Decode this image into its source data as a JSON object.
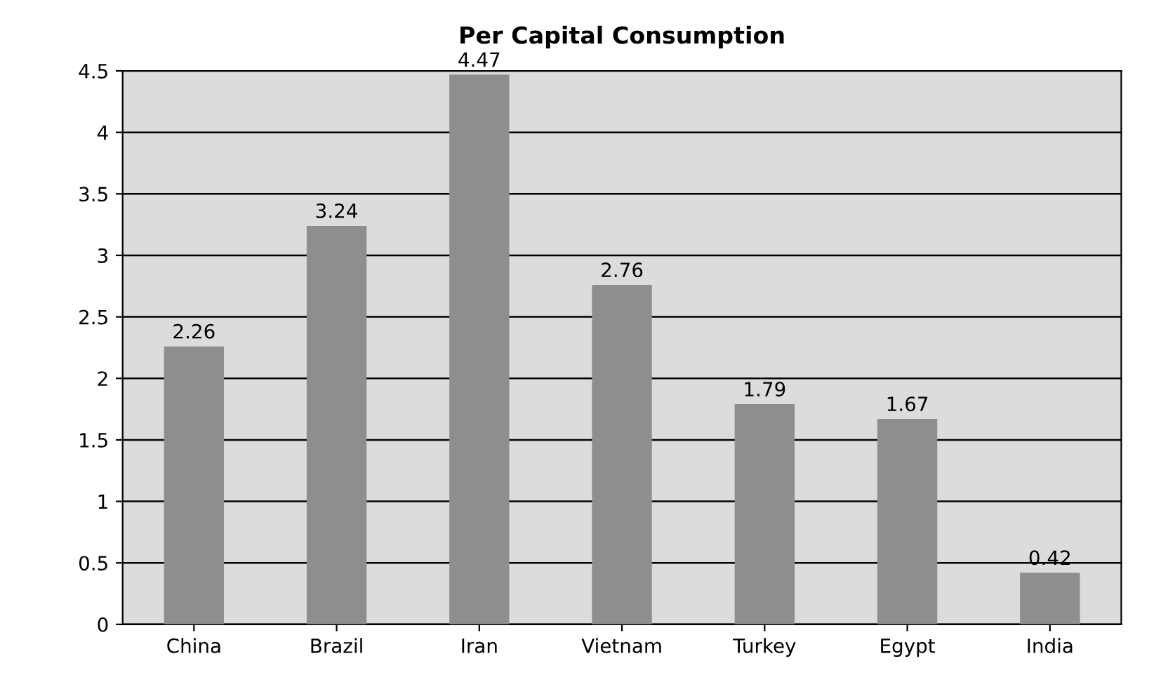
{
  "chart_data": {
    "type": "bar",
    "title": "Per Capital Consumption",
    "categories": [
      "China",
      "Brazil",
      "Iran",
      "Vietnam",
      "Turkey",
      "Egypt",
      "India"
    ],
    "values": [
      2.26,
      3.24,
      4.47,
      2.76,
      1.79,
      1.67,
      0.42
    ],
    "color": "#8e8e8e",
    "ylim": [
      0,
      4.5
    ],
    "yticks": [
      0,
      0.5,
      1,
      1.5,
      2,
      2.5,
      3,
      3.5,
      4,
      4.5
    ],
    "grid": "y",
    "data_labels": true
  }
}
